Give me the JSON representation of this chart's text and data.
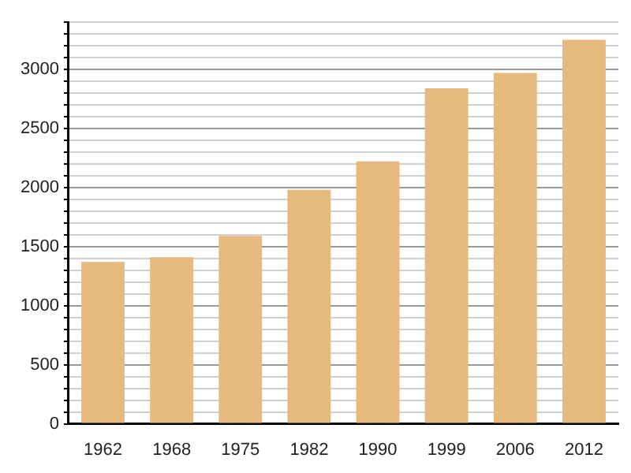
{
  "chart_data": {
    "type": "bar",
    "categories": [
      "1962",
      "1968",
      "1975",
      "1982",
      "1990",
      "1999",
      "2006",
      "2012"
    ],
    "values": [
      1370,
      1410,
      1590,
      1980,
      2220,
      2840,
      2970,
      3250
    ],
    "color": "#e6b97f",
    "ylim": [
      0,
      3400
    ],
    "yticks": [
      0,
      {
        "value": 100,
        "label": null
      },
      {
        "value": 200,
        "label": null
      },
      {
        "value": 300,
        "label": null
      },
      {
        "value": 400,
        "label": null
      },
      500,
      {
        "value": 600,
        "label": null
      },
      {
        "value": 700,
        "label": null
      },
      {
        "value": 800,
        "label": null
      },
      {
        "value": 900,
        "label": null
      },
      1000,
      {
        "value": 1100,
        "label": null
      },
      {
        "value": 1200,
        "label": null
      },
      {
        "value": 1300,
        "label": null
      },
      {
        "value": 1400,
        "label": null
      },
      1500,
      {
        "value": 1600,
        "label": null
      },
      {
        "value": 1700,
        "label": null
      },
      {
        "value": 1800,
        "label": null
      },
      {
        "value": 1900,
        "label": null
      },
      2000,
      {
        "value": 2100,
        "label": null
      },
      {
        "value": 2200,
        "label": null
      },
      {
        "value": 2300,
        "label": null
      },
      {
        "value": 2400,
        "label": null
      },
      2500,
      {
        "value": 2600,
        "label": null
      },
      {
        "value": 2700,
        "label": null
      },
      {
        "value": 2800,
        "label": null
      },
      {
        "value": 2900,
        "label": null
      },
      3000,
      {
        "value": 3100,
        "label": null
      },
      {
        "value": 3200,
        "label": null
      },
      {
        "value": 3300,
        "label": null
      },
      {
        "value": 3400,
        "label": null
      }
    ],
    "grid": "y"
  }
}
